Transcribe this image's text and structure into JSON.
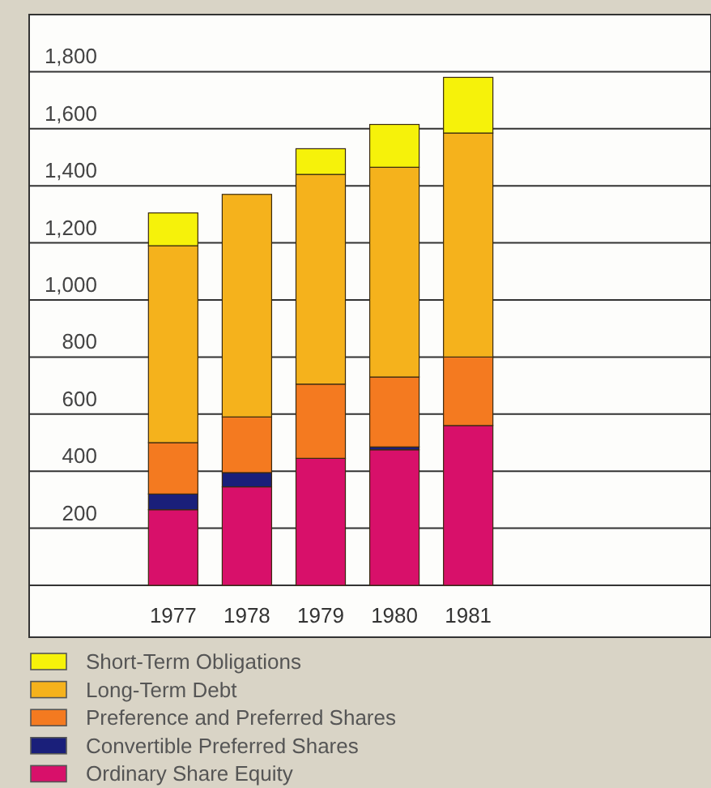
{
  "chart_data": {
    "type": "bar",
    "stacked": true,
    "categories": [
      "1977",
      "1978",
      "1979",
      "1980",
      "1981"
    ],
    "series": [
      {
        "name": "Ordinary Share Equity",
        "color": "#d8106a",
        "values": [
          265,
          345,
          445,
          475,
          560
        ]
      },
      {
        "name": "Convertible Preferred Shares",
        "color": "#1a1f7a",
        "values": [
          55,
          50,
          null,
          10,
          null
        ]
      },
      {
        "name": "Preference and Preferred Shares",
        "color": "#f47a20",
        "values": [
          180,
          195,
          260,
          245,
          240
        ]
      },
      {
        "name": "Long-Term Debt",
        "color": "#f5b21c",
        "values": [
          690,
          780,
          735,
          735,
          785
        ]
      },
      {
        "name": "Short-Term Obligations",
        "color": "#f6f20a",
        "values": [
          115,
          null,
          90,
          150,
          195
        ]
      }
    ],
    "ylim": [
      0,
      2000
    ],
    "yticks": [
      {
        "value": 0,
        "label": null
      },
      {
        "value": 200,
        "label": "200"
      },
      {
        "value": 400,
        "label": "400"
      },
      {
        "value": 600,
        "label": "600"
      },
      {
        "value": 800,
        "label": "800"
      },
      {
        "value": 1000,
        "label": "1,000"
      },
      {
        "value": 1200,
        "label": "1,200"
      },
      {
        "value": 1400,
        "label": "1,400"
      },
      {
        "value": 1600,
        "label": "1,600"
      },
      {
        "value": 1800,
        "label": "1,800"
      }
    ],
    "grid": "y",
    "legend": "bottom"
  }
}
